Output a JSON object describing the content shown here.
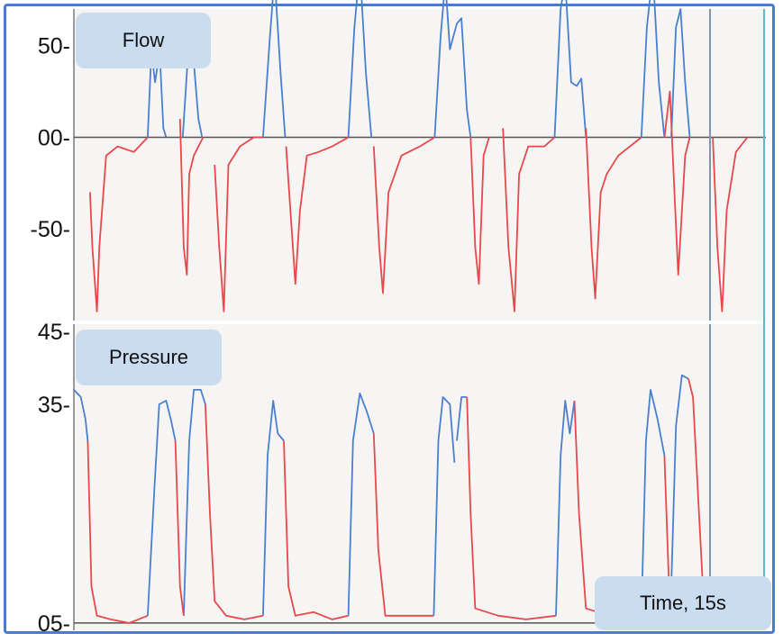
{
  "colors": {
    "inspiration": "#4a7fd0",
    "expiration": "#e8474c",
    "baseline": "#555555",
    "label_box": "#c9dcf0",
    "frame": "#4a7ccc"
  },
  "time_label": "Time, 15s",
  "chart_data": [
    {
      "type": "line",
      "title": "Flow",
      "xlabel": "",
      "ylabel": "",
      "xlim": [
        0,
        15
      ],
      "ylim": [
        -100,
        70
      ],
      "y_ticks": [
        {
          "value": 50,
          "label": "50-"
        },
        {
          "value": 0,
          "label": "00-"
        },
        {
          "value": -50,
          "label": "-50-"
        }
      ],
      "baseline": 0,
      "series": [
        {
          "color": "#4a7fd0",
          "segments": [
            [
              [
                1.6,
                0
              ],
              [
                1.68,
                47
              ],
              [
                1.76,
                30
              ],
              [
                1.86,
                47
              ],
              [
                1.94,
                5
              ],
              [
                2.0,
                0
              ]
            ],
            [
              [
                2.36,
                0
              ],
              [
                2.46,
                40
              ],
              [
                2.56,
                53
              ],
              [
                2.7,
                10
              ],
              [
                2.78,
                0
              ]
            ],
            [
              [
                4.1,
                0
              ],
              [
                4.25,
                55
              ],
              [
                4.35,
                88
              ],
              [
                4.48,
                35
              ],
              [
                4.58,
                0
              ]
            ],
            [
              [
                5.95,
                0
              ],
              [
                6.08,
                60
              ],
              [
                6.2,
                92
              ],
              [
                6.33,
                35
              ],
              [
                6.45,
                0
              ]
            ],
            [
              [
                7.82,
                0
              ],
              [
                7.95,
                55
              ],
              [
                8.05,
                85
              ],
              [
                8.15,
                48
              ],
              [
                8.3,
                62
              ],
              [
                8.4,
                65
              ],
              [
                8.52,
                15
              ],
              [
                8.6,
                0
              ]
            ],
            [
              [
                10.42,
                0
              ],
              [
                10.55,
                70
              ],
              [
                10.65,
                85
              ],
              [
                10.78,
                30
              ],
              [
                10.9,
                28
              ],
              [
                11.0,
                32
              ],
              [
                11.1,
                0
              ]
            ],
            [
              [
                12.3,
                0
              ],
              [
                12.42,
                60
              ],
              [
                12.55,
                90
              ],
              [
                12.68,
                30
              ],
              [
                12.8,
                0
              ]
            ],
            [
              [
                12.95,
                0
              ],
              [
                13.05,
                60
              ],
              [
                13.15,
                70
              ],
              [
                13.25,
                30
              ],
              [
                13.35,
                0
              ]
            ]
          ]
        },
        {
          "color": "#e8474c",
          "segments": [
            [
              [
                0.35,
                -30
              ],
              [
                0.4,
                -60
              ],
              [
                0.5,
                -95
              ],
              [
                0.55,
                -60
              ],
              [
                0.7,
                -10
              ],
              [
                0.95,
                -5
              ],
              [
                1.3,
                -8
              ],
              [
                1.6,
                0
              ]
            ],
            [
              [
                2.3,
                10
              ],
              [
                2.38,
                -60
              ],
              [
                2.45,
                -75
              ],
              [
                2.5,
                -20
              ],
              [
                2.6,
                -10
              ],
              [
                2.8,
                0
              ]
            ],
            [
              [
                3.05,
                -15
              ],
              [
                3.15,
                -60
              ],
              [
                3.25,
                -95
              ],
              [
                3.35,
                -15
              ],
              [
                3.6,
                -5
              ],
              [
                3.9,
                0
              ],
              [
                4.1,
                0
              ]
            ],
            [
              [
                4.6,
                -5
              ],
              [
                4.72,
                -50
              ],
              [
                4.8,
                -80
              ],
              [
                4.9,
                -40
              ],
              [
                5.05,
                -10
              ],
              [
                5.3,
                -8
              ],
              [
                5.6,
                -5
              ],
              [
                5.95,
                0
              ]
            ],
            [
              [
                6.5,
                -5
              ],
              [
                6.62,
                -60
              ],
              [
                6.7,
                -85
              ],
              [
                6.82,
                -30
              ],
              [
                7.1,
                -10
              ],
              [
                7.5,
                -5
              ],
              [
                7.82,
                0
              ]
            ],
            [
              [
                8.6,
                0
              ],
              [
                8.7,
                -60
              ],
              [
                8.78,
                -80
              ],
              [
                8.88,
                -10
              ],
              [
                9.0,
                0
              ]
            ],
            [
              [
                9.3,
                5
              ],
              [
                9.42,
                -60
              ],
              [
                9.55,
                -95
              ],
              [
                9.65,
                -20
              ],
              [
                9.85,
                -5
              ],
              [
                10.2,
                -5
              ],
              [
                10.42,
                0
              ]
            ],
            [
              [
                11.1,
                5
              ],
              [
                11.22,
                -60
              ],
              [
                11.3,
                -88
              ],
              [
                11.42,
                -30
              ],
              [
                11.55,
                -20
              ],
              [
                11.8,
                -10
              ],
              [
                12.3,
                0
              ]
            ],
            [
              [
                12.8,
                0
              ],
              [
                12.92,
                25
              ],
              [
                13.0,
                -20
              ],
              [
                13.1,
                -75
              ],
              [
                13.25,
                -10
              ],
              [
                13.35,
                0
              ]
            ],
            [
              [
                13.85,
                0
              ],
              [
                13.95,
                -60
              ],
              [
                14.05,
                -95
              ],
              [
                14.15,
                -40
              ],
              [
                14.35,
                -8
              ],
              [
                14.6,
                0
              ]
            ]
          ]
        }
      ]
    },
    {
      "type": "line",
      "title": "Pressure",
      "xlabel": "",
      "ylabel": "",
      "xlim": [
        0,
        15
      ],
      "ylim": [
        4,
        46
      ],
      "y_ticks": [
        {
          "value": 45,
          "label": "45-"
        },
        {
          "value": 35,
          "label": "35-"
        },
        {
          "value": 5,
          "label": "05-"
        }
      ],
      "baseline": 5,
      "series": [
        {
          "color": "#4a7fd0",
          "segments": [
            [
              [
                0.0,
                37
              ],
              [
                0.15,
                36
              ],
              [
                0.25,
                33
              ],
              [
                0.3,
                30
              ]
            ],
            [
              [
                1.6,
                6
              ],
              [
                1.75,
                24
              ],
              [
                1.85,
                35
              ],
              [
                2.0,
                35.5
              ],
              [
                2.1,
                33
              ],
              [
                2.2,
                30
              ]
            ],
            [
              [
                2.38,
                6
              ],
              [
                2.5,
                30
              ],
              [
                2.6,
                37
              ],
              [
                2.75,
                37
              ],
              [
                2.85,
                35
              ]
            ],
            [
              [
                4.1,
                6
              ],
              [
                4.2,
                28
              ],
              [
                4.32,
                35.5
              ],
              [
                4.42,
                31
              ],
              [
                4.55,
                30
              ]
            ],
            [
              [
                5.95,
                6
              ],
              [
                6.05,
                30
              ],
              [
                6.2,
                36.5
              ],
              [
                6.35,
                34
              ],
              [
                6.5,
                31
              ]
            ],
            [
              [
                7.8,
                6
              ],
              [
                7.9,
                30
              ],
              [
                8.0,
                36
              ],
              [
                8.15,
                35
              ],
              [
                8.25,
                27
              ]
            ],
            [
              [
                8.3,
                30
              ],
              [
                8.4,
                36
              ],
              [
                8.52,
                36
              ]
            ],
            [
              [
                10.45,
                6
              ],
              [
                10.55,
                28
              ],
              [
                10.65,
                35.5
              ],
              [
                10.75,
                31
              ],
              [
                10.85,
                35.5
              ]
            ],
            [
              [
                12.3,
                6
              ],
              [
                12.4,
                30
              ],
              [
                12.5,
                37
              ],
              [
                12.65,
                33
              ],
              [
                12.8,
                28
              ]
            ],
            [
              [
                12.95,
                10
              ],
              [
                13.05,
                32
              ],
              [
                13.18,
                39
              ],
              [
                13.32,
                38.5
              ]
            ]
          ]
        },
        {
          "color": "#e8474c",
          "segments": [
            [
              [
                0.3,
                30
              ],
              [
                0.38,
                10
              ],
              [
                0.5,
                6
              ],
              [
                0.8,
                5.5
              ],
              [
                1.2,
                5
              ],
              [
                1.6,
                6
              ]
            ],
            [
              [
                2.2,
                30
              ],
              [
                2.3,
                10
              ],
              [
                2.38,
                6
              ]
            ],
            [
              [
                2.85,
                35
              ],
              [
                2.95,
                20
              ],
              [
                3.05,
                8
              ],
              [
                3.3,
                6
              ],
              [
                3.7,
                5.5
              ],
              [
                4.1,
                6
              ]
            ],
            [
              [
                4.55,
                30
              ],
              [
                4.65,
                10
              ],
              [
                4.8,
                6
              ],
              [
                5.2,
                6.5
              ],
              [
                5.6,
                5.5
              ],
              [
                5.95,
                6
              ]
            ],
            [
              [
                6.5,
                31
              ],
              [
                6.6,
                15
              ],
              [
                6.75,
                6
              ],
              [
                7.2,
                6
              ],
              [
                7.8,
                6
              ]
            ],
            [
              [
                8.52,
                36
              ],
              [
                8.6,
                20
              ],
              [
                8.7,
                7
              ],
              [
                9.2,
                6
              ],
              [
                9.8,
                5.5
              ],
              [
                10.45,
                6
              ]
            ],
            [
              [
                10.85,
                35.5
              ],
              [
                10.95,
                20
              ],
              [
                11.1,
                7
              ],
              [
                11.6,
                6
              ],
              [
                12.3,
                6
              ]
            ],
            [
              [
                12.8,
                28
              ],
              [
                12.9,
                10
              ],
              [
                12.95,
                6
              ]
            ],
            [
              [
                13.32,
                38.5
              ],
              [
                13.42,
                36
              ],
              [
                13.55,
                20
              ],
              [
                13.65,
                8
              ],
              [
                13.8,
                6
              ],
              [
                14.0,
                6
              ]
            ]
          ]
        }
      ]
    }
  ]
}
